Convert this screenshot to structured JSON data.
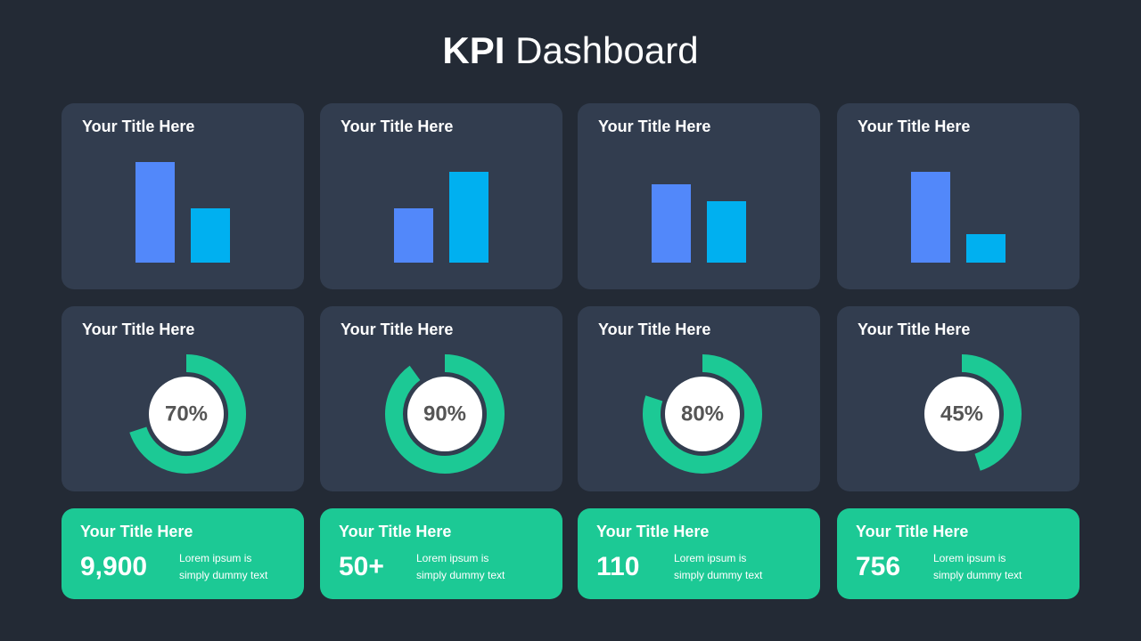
{
  "title": {
    "bold": "KPI",
    "rest": "Dashboard"
  },
  "chart_data": [
    {
      "type": "bar",
      "title": "Your Title Here",
      "categories": [
        null,
        null
      ],
      "values": [
        113,
        61
      ],
      "colors": [
        "#5288fa",
        "#00b0f0"
      ],
      "ylim": [
        0,
        120
      ]
    },
    {
      "type": "bar",
      "title": "Your Title Here",
      "categories": [
        null,
        null
      ],
      "values": [
        61,
        102
      ],
      "colors": [
        "#5288fa",
        "#00b0f0"
      ],
      "ylim": [
        0,
        120
      ]
    },
    {
      "type": "bar",
      "title": "Your Title Here",
      "categories": [
        null,
        null
      ],
      "values": [
        88,
        69
      ],
      "colors": [
        "#5288fa",
        "#00b0f0"
      ],
      "ylim": [
        0,
        120
      ]
    },
    {
      "type": "bar",
      "title": "Your Title Here",
      "categories": [
        null,
        null
      ],
      "values": [
        102,
        32
      ],
      "colors": [
        "#5288fa",
        "#00b0f0"
      ],
      "ylim": [
        0,
        120
      ]
    },
    {
      "type": "donut",
      "title": "Your Title Here",
      "values": [
        70
      ],
      "value_labels": [
        "70%"
      ],
      "color": "#1cc995",
      "ylim": [
        0,
        100
      ]
    },
    {
      "type": "donut",
      "title": "Your Title Here",
      "values": [
        90
      ],
      "value_labels": [
        "90%"
      ],
      "color": "#1cc995",
      "ylim": [
        0,
        100
      ]
    },
    {
      "type": "donut",
      "title": "Your Title Here",
      "values": [
        80
      ],
      "value_labels": [
        "80%"
      ],
      "color": "#1cc995",
      "ylim": [
        0,
        100
      ]
    },
    {
      "type": "donut",
      "title": "Your Title Here",
      "values": [
        45
      ],
      "value_labels": [
        "45%"
      ],
      "color": "#1cc995",
      "ylim": [
        0,
        100
      ]
    }
  ],
  "stats": [
    {
      "title": "Your Title Here",
      "value": "9,900",
      "text": [
        "Lorem ipsum is",
        "simply dummy text"
      ]
    },
    {
      "title": "Your Title Here",
      "value": "50+",
      "text": [
        "Lorem ipsum is",
        "simply dummy text"
      ]
    },
    {
      "title": "Your Title Here",
      "value": "110",
      "text": [
        "Lorem ipsum is",
        "simply dummy text"
      ]
    },
    {
      "title": "Your Title Here",
      "value": "756",
      "text": [
        "Lorem ipsum is",
        "simply dummy text"
      ]
    }
  ]
}
